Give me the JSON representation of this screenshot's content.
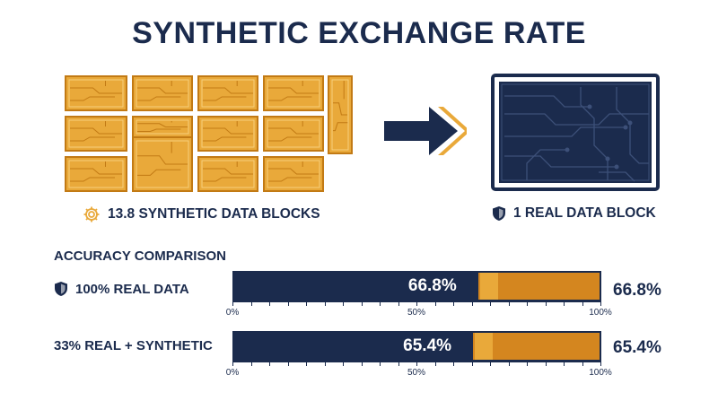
{
  "title": "SYNTHETIC EXCHANGE RATE",
  "synthetic_caption": "13.8 SYNTHETIC DATA BLOCKS",
  "real_caption": "1 REAL DATA BLOCK",
  "comparison": {
    "heading": "ACCURACY COMPARISON",
    "rows": [
      {
        "label": "100% REAL DATA",
        "value_pct": 66.8,
        "value_text": "66.8%"
      },
      {
        "label": "33% REAL + SYNTHETIC",
        "value_pct": 65.4,
        "value_text": "65.4%"
      }
    ],
    "ticks": [
      "0%",
      "50%",
      "100%"
    ]
  },
  "colors": {
    "navy": "#1b2b4d",
    "gold": "#e9a93a",
    "orange": "#d4861f"
  }
}
